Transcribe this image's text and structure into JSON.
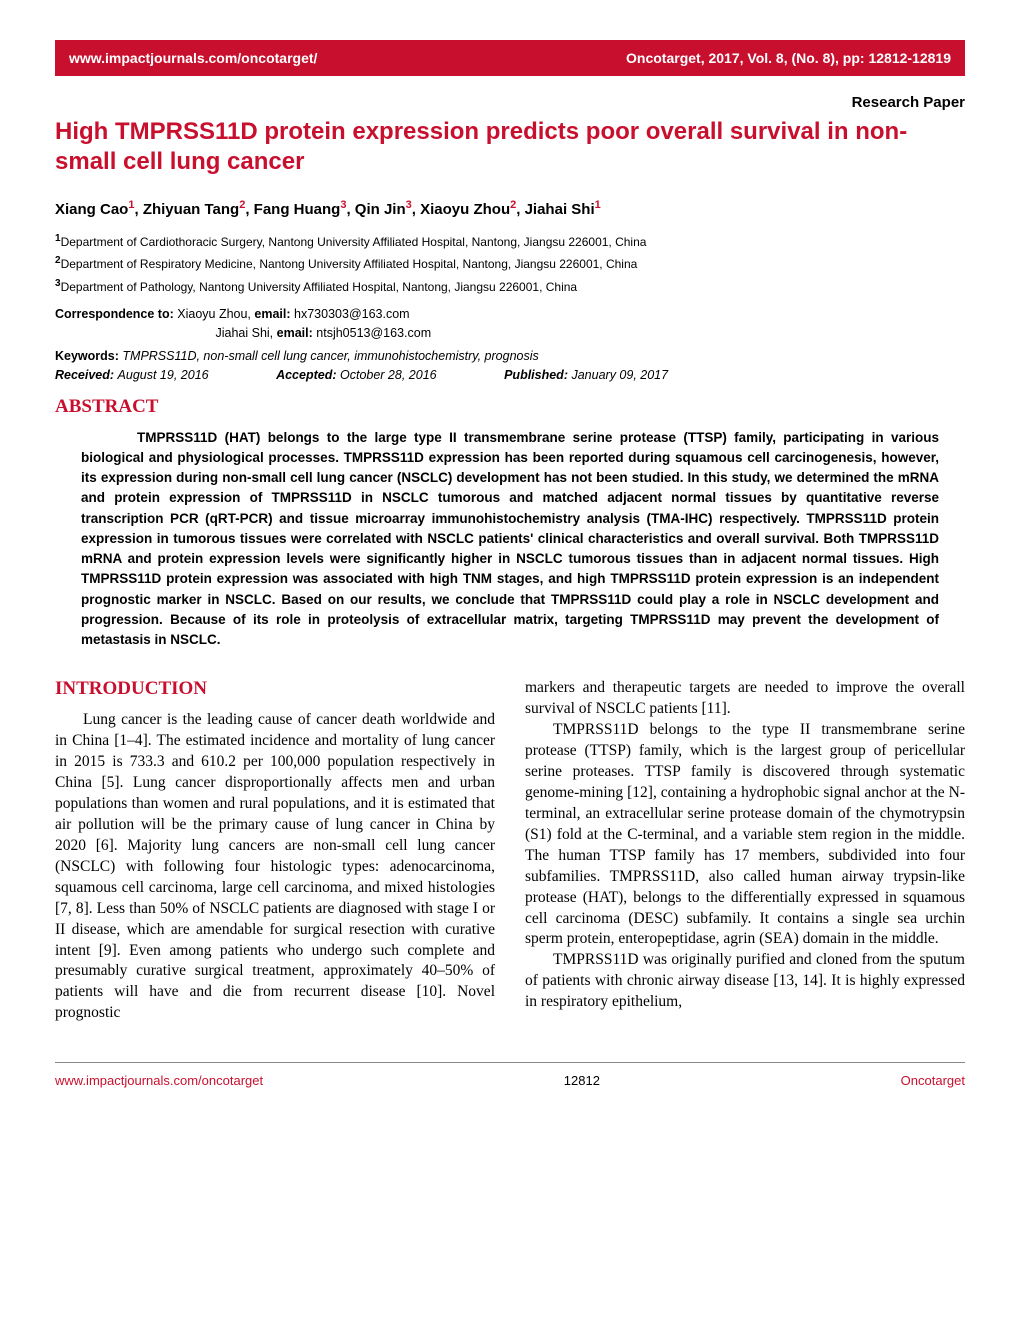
{
  "colors": {
    "accent": "#c8102e",
    "text": "#000000",
    "background": "#ffffff",
    "footer_rule": "#888888"
  },
  "typography": {
    "body_font": "Times New Roman, serif",
    "ui_font": "Verdana, Arial, sans-serif",
    "title_size_pt": 24,
    "section_heading_size_pt": 19,
    "body_size_pt": 15.5,
    "abstract_size_pt": 13.5
  },
  "header": {
    "url": "www.impactjournals.com/oncotarget/",
    "citation": "Oncotarget, 2017, Vol. 8, (No. 8), pp: 12812-12819"
  },
  "paper_type": "Research Paper",
  "title": "High TMPRSS11D protein expression predicts poor overall survival in non-small cell lung cancer",
  "authors_html": "Xiang Cao<sup>1</sup>, Zhiyuan Tang<sup>2</sup>, Fang Huang<sup>3</sup>, Qin Jin<sup>3</sup>, Xiaoyu Zhou<sup>2</sup>, Jiahai Shi<sup>1</sup>",
  "affiliations": [
    {
      "num": "1",
      "text": "Department of Cardiothoracic Surgery, Nantong University Affiliated Hospital, Nantong, Jiangsu 226001, China"
    },
    {
      "num": "2",
      "text": "Department of Respiratory Medicine, Nantong University Affiliated Hospital, Nantong, Jiangsu 226001, China"
    },
    {
      "num": "3",
      "text": "Department of Pathology, Nantong University Affiliated Hospital, Nantong, Jiangsu 226001, China"
    }
  ],
  "correspondence": {
    "label": "Correspondence to:",
    "lines": [
      {
        "name": "Xiaoyu Zhou,",
        "email_label": "email:",
        "email": "hx730303@163.com"
      },
      {
        "name": "Jiahai Shi,",
        "email_label": "email:",
        "email": "ntsjh0513@163.com"
      }
    ]
  },
  "keywords": {
    "label": "Keywords:",
    "text": "TMPRSS11D, non-small cell lung cancer, immunohistochemistry, prognosis"
  },
  "dates": {
    "received": {
      "label": "Received:",
      "value": "August 19, 2016"
    },
    "accepted": {
      "label": "Accepted:",
      "value": "October 28, 2016"
    },
    "published": {
      "label": "Published:",
      "value": "January 09, 2017"
    }
  },
  "abstract": {
    "heading": "ABSTRACT",
    "text": "TMPRSS11D (HAT) belongs to the large type II transmembrane serine protease (TTSP) family, participating in various biological and physiological processes. TMPRSS11D expression has been reported during squamous cell carcinogenesis, however, its expression during non-small cell lung cancer (NSCLC) development has not been studied. In this study, we determined the mRNA and protein expression of TMPRSS11D in NSCLC tumorous and matched adjacent normal tissues by quantitative reverse transcription PCR (qRT-PCR) and tissue microarray immunohistochemistry analysis (TMA-IHC) respectively. TMPRSS11D protein expression in tumorous tissues were correlated with NSCLC patients' clinical characteristics and overall survival. Both TMPRSS11D mRNA and protein expression levels were significantly higher in NSCLC tumorous tissues than in adjacent normal tissues. High TMPRSS11D protein expression was associated with high TNM stages, and high TMPRSS11D protein expression is an independent prognostic marker in NSCLC. Based on our results, we conclude that TMPRSS11D could play a role in NSCLC development and progression. Because of its role in proteolysis of extracellular matrix, targeting TMPRSS11D may prevent the development of metastasis in NSCLC."
  },
  "introduction": {
    "heading": "INTRODUCTION",
    "left_paragraphs": [
      "Lung cancer is the leading cause of cancer death worldwide and in China [1–4]. The estimated incidence and mortality of lung cancer in 2015 is 733.3 and 610.2 per 100,000 population respectively in China [5]. Lung cancer disproportionally affects men and urban populations than women and rural populations, and it is estimated that air pollution will be the primary cause of lung cancer in China by 2020 [6]. Majority lung cancers are non-small cell lung cancer (NSCLC) with following four histologic types: adenocarcinoma, squamous cell carcinoma, large cell carcinoma, and mixed histologies [7, 8]. Less than 50% of NSCLC patients are diagnosed with stage I or II disease, which are amendable for surgical resection with curative intent [9]. Even among patients who undergo such complete and presumably curative surgical treatment, approximately 40–50% of patients will have and die from recurrent disease [10]. Novel prognostic"
    ],
    "right_paragraphs": [
      "markers and therapeutic targets are needed to improve the overall survival of NSCLC patients [11].",
      "TMPRSS11D belongs to the type II transmembrane serine protease (TTSP) family, which is the largest group of pericellular serine proteases. TTSP family is discovered through systematic genome-mining [12], containing a hydrophobic signal anchor at the N-terminal, an extracellular serine protease domain of the chymotrypsin (S1) fold at the C-terminal, and a variable stem region in the middle. The human TTSP family has 17 members, subdivided into four subfamilies. TMPRSS11D, also called human airway trypsin-like protease (HAT), belongs to the differentially expressed in squamous cell carcinoma (DESC) subfamily. It contains a single sea urchin sperm protein, enteropeptidase, agrin (SEA) domain in the middle.",
      "TMPRSS11D was originally purified and cloned from the sputum of patients with chronic airway disease [13, 14]. It is highly expressed in respiratory epithelium,"
    ]
  },
  "footer": {
    "url": "www.impactjournals.com/oncotarget",
    "page": "12812",
    "journal": "Oncotarget"
  }
}
